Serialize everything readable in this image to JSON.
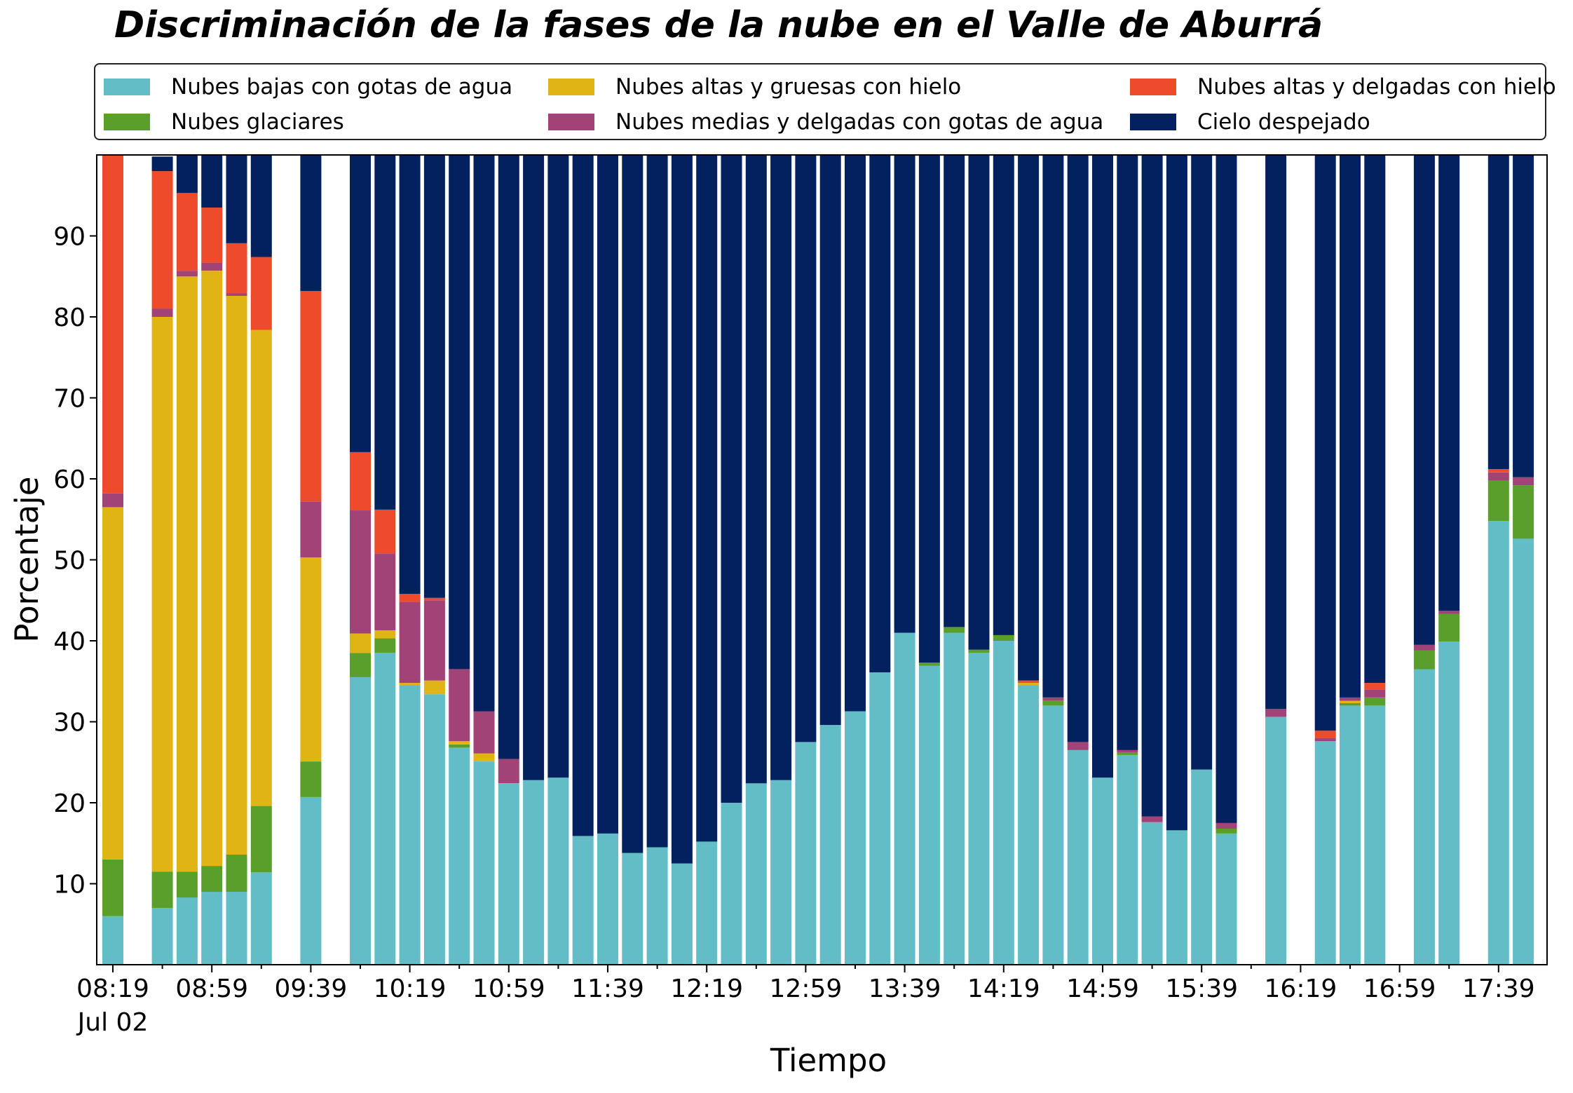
{
  "chart_data": {
    "type": "bar",
    "stacked": true,
    "title": "Discriminación de la fases de la nube en el Valle de Aburrá",
    "xlabel": "Tiempo",
    "ylabel": "Porcentaje",
    "ylim": [
      0,
      100
    ],
    "yticks": [
      10,
      20,
      30,
      40,
      50,
      60,
      70,
      80,
      90
    ],
    "xtick_labels": [
      "08:19",
      "08:59",
      "09:39",
      "10:19",
      "10:59",
      "11:39",
      "12:19",
      "12:59",
      "13:39",
      "14:19",
      "14:59",
      "15:39",
      "16:19",
      "16:59",
      "17:39"
    ],
    "x_date_label": "Jul 02",
    "grid": false,
    "legend_position": "top",
    "series": [
      {
        "name": "Nubes bajas con gotas de agua",
        "color": "#63bdc7"
      },
      {
        "name": "Nubes glaciares",
        "color": "#5a9e2b"
      },
      {
        "name": "Nubes altas y gruesas con hielo",
        "color": "#e1b415"
      },
      {
        "name": "Nubes medias y delgadas con gotas de agua",
        "color": "#a24378"
      },
      {
        "name": "Nubes altas y delgadas con hielo",
        "color": "#ee4a2c"
      },
      {
        "name": "Cielo despejado",
        "color": "#02215e"
      }
    ],
    "bars": [
      {
        "time": "08:19",
        "values": [
          6,
          7,
          43.5,
          1.7,
          41.8,
          0
        ]
      },
      {
        "time": "08:29",
        "values": null
      },
      {
        "time": "08:39",
        "values": [
          7,
          4.5,
          68.5,
          1,
          17,
          1.8
        ]
      },
      {
        "time": "08:49",
        "values": [
          8.3,
          3.2,
          73.5,
          0.7,
          9.6,
          4.7
        ]
      },
      {
        "time": "08:59",
        "values": [
          9,
          3.2,
          73.5,
          1,
          6.8,
          6.5
        ]
      },
      {
        "time": "09:09",
        "values": [
          9,
          4.6,
          69,
          0.3,
          6.2,
          10.9
        ]
      },
      {
        "time": "09:19",
        "values": [
          11.4,
          8.2,
          58.8,
          0,
          9,
          12.6
        ]
      },
      {
        "time": "09:29",
        "values": null
      },
      {
        "time": "09:39",
        "values": [
          20.7,
          4.4,
          25.2,
          6.9,
          26,
          16.8
        ]
      },
      {
        "time": "09:49",
        "values": null
      },
      {
        "time": "09:59",
        "values": [
          35.5,
          3,
          2.4,
          15.2,
          7.2,
          36.7
        ]
      },
      {
        "time": "10:09",
        "values": [
          38.5,
          1.8,
          1,
          9.5,
          5.4,
          43.8
        ]
      },
      {
        "time": "10:19",
        "values": [
          34.5,
          0,
          0.3,
          10,
          1,
          54.2
        ]
      },
      {
        "time": "10:29",
        "values": [
          33.4,
          0,
          1.7,
          9.9,
          0.3,
          54.7
        ]
      },
      {
        "time": "10:39",
        "values": [
          26.8,
          0.4,
          0.4,
          8.9,
          0,
          63.5
        ]
      },
      {
        "time": "10:49",
        "values": [
          25.1,
          0,
          1,
          5.2,
          0,
          68.7
        ]
      },
      {
        "time": "10:59",
        "values": [
          22.4,
          0,
          0,
          3,
          0,
          74.6
        ]
      },
      {
        "time": "11:09",
        "values": [
          22.8,
          0,
          0,
          0,
          0,
          77.2
        ]
      },
      {
        "time": "11:19",
        "values": [
          23.1,
          0,
          0,
          0,
          0,
          76.9
        ]
      },
      {
        "time": "11:29",
        "values": [
          15.9,
          0,
          0,
          0,
          0,
          84.1
        ]
      },
      {
        "time": "11:39",
        "values": [
          16.2,
          0,
          0,
          0,
          0,
          83.8
        ]
      },
      {
        "time": "11:49",
        "values": [
          13.8,
          0,
          0,
          0,
          0,
          86.2
        ]
      },
      {
        "time": "11:59",
        "values": [
          14.5,
          0,
          0,
          0,
          0,
          85.5
        ]
      },
      {
        "time": "12:09",
        "values": [
          12.5,
          0,
          0,
          0,
          0,
          87.5
        ]
      },
      {
        "time": "12:19",
        "values": [
          15.2,
          0,
          0,
          0,
          0,
          84.8
        ]
      },
      {
        "time": "12:29",
        "values": [
          20,
          0,
          0,
          0,
          0,
          80
        ]
      },
      {
        "time": "12:39",
        "values": [
          22.4,
          0,
          0,
          0,
          0,
          77.6
        ]
      },
      {
        "time": "12:49",
        "values": [
          22.8,
          0,
          0,
          0,
          0,
          77.2
        ]
      },
      {
        "time": "12:59",
        "values": [
          27.5,
          0,
          0,
          0,
          0,
          72.5
        ]
      },
      {
        "time": "13:09",
        "values": [
          29.6,
          0,
          0,
          0,
          0,
          70.4
        ]
      },
      {
        "time": "13:19",
        "values": [
          31.3,
          0,
          0,
          0,
          0,
          68.7
        ]
      },
      {
        "time": "13:29",
        "values": [
          36.1,
          0,
          0,
          0,
          0,
          63.9
        ]
      },
      {
        "time": "13:39",
        "values": [
          41,
          0,
          0,
          0,
          0,
          59
        ]
      },
      {
        "time": "13:49",
        "values": [
          36.9,
          0.4,
          0,
          0,
          0,
          62.7
        ]
      },
      {
        "time": "13:59",
        "values": [
          41,
          0.7,
          0,
          0,
          0,
          58.3
        ]
      },
      {
        "time": "14:09",
        "values": [
          38.5,
          0.4,
          0,
          0,
          0,
          61.1
        ]
      },
      {
        "time": "14:19",
        "values": [
          40,
          0.7,
          0,
          0,
          0,
          59.3
        ]
      },
      {
        "time": "14:29",
        "values": [
          34.5,
          0,
          0.3,
          0,
          0.3,
          64.9
        ]
      },
      {
        "time": "14:39",
        "values": [
          32,
          0.6,
          0,
          0.4,
          0,
          67
        ]
      },
      {
        "time": "14:49",
        "values": [
          26.5,
          0,
          0,
          1,
          0,
          72.5
        ]
      },
      {
        "time": "14:59",
        "values": [
          23.1,
          0,
          0,
          0,
          0,
          76.9
        ]
      },
      {
        "time": "15:09",
        "values": [
          25.9,
          0.3,
          0,
          0.3,
          0,
          73.5
        ]
      },
      {
        "time": "15:19",
        "values": [
          17.6,
          0,
          0,
          0.7,
          0,
          81.7
        ]
      },
      {
        "time": "15:29",
        "values": [
          16.6,
          0,
          0,
          0,
          0,
          83.4
        ]
      },
      {
        "time": "15:39",
        "values": [
          24.1,
          0,
          0,
          0,
          0,
          75.9
        ]
      },
      {
        "time": "15:49",
        "values": [
          16.2,
          0.6,
          0,
          0.7,
          0,
          82.5
        ]
      },
      {
        "time": "15:59",
        "values": null
      },
      {
        "time": "16:09",
        "values": [
          30.6,
          0,
          0,
          1,
          0,
          68.4
        ]
      },
      {
        "time": "16:19",
        "values": null
      },
      {
        "time": "16:29",
        "values": [
          27.6,
          0,
          0,
          0.4,
          0.9,
          71.1
        ]
      },
      {
        "time": "16:39",
        "values": [
          32,
          0.3,
          0.3,
          0.4,
          0,
          67
        ]
      },
      {
        "time": "16:49",
        "values": [
          32,
          1,
          0,
          1,
          0.8,
          65.2
        ]
      },
      {
        "time": "16:59",
        "values": null
      },
      {
        "time": "17:09",
        "values": [
          36.5,
          2.3,
          0,
          0.7,
          0,
          60.5
        ]
      },
      {
        "time": "17:19",
        "values": [
          39.9,
          3.4,
          0,
          0.4,
          0,
          56.3
        ]
      },
      {
        "time": "17:29",
        "values": null
      },
      {
        "time": "17:39",
        "values": [
          54.8,
          5,
          0,
          1,
          0.4,
          38.8
        ]
      },
      {
        "time": "17:49",
        "values": [
          52.6,
          6.6,
          0,
          1,
          0,
          39.8
        ]
      }
    ]
  }
}
